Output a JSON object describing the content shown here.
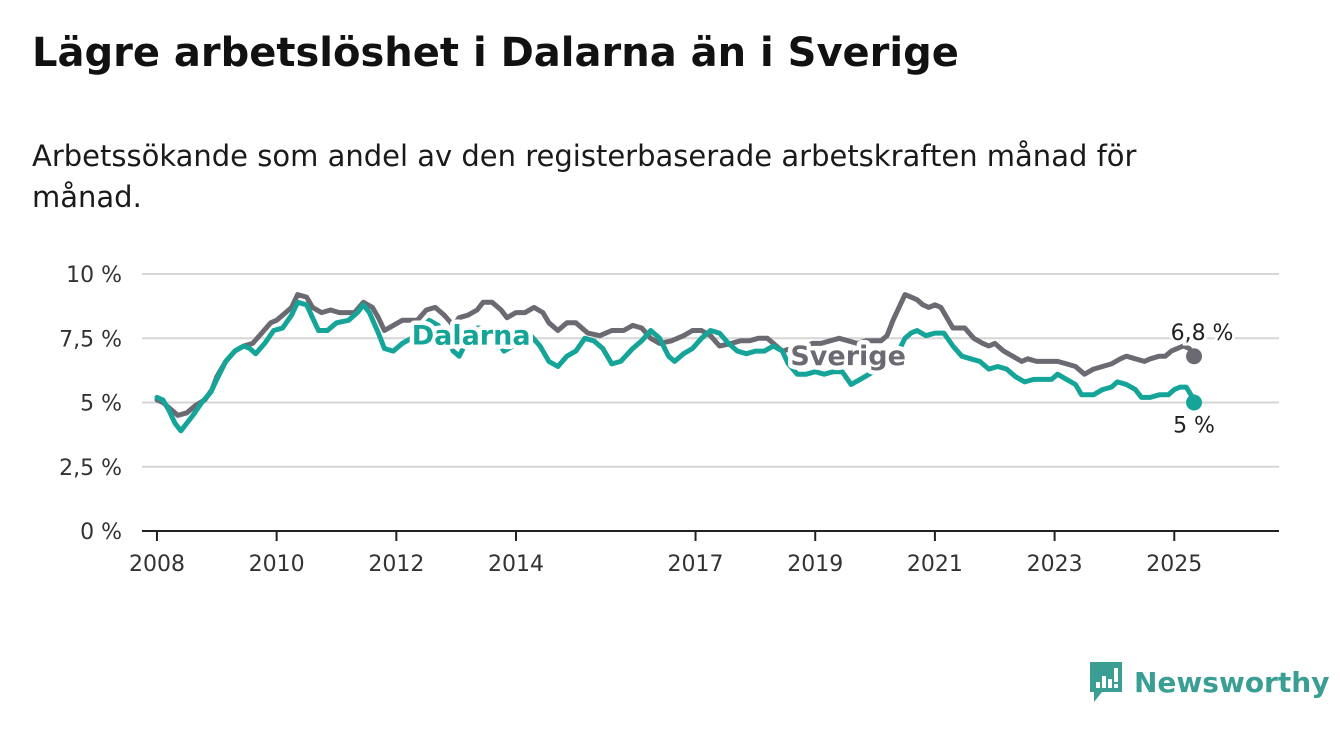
{
  "title": "Lägre arbetslöshet i Dalarna än i Sverige",
  "subtitle": "Arbetssökande som andel av den registerbaserade arbetskraften månad för månad.",
  "brand": {
    "name": "Newsworthy",
    "color": "#3a9e94",
    "icon": "bar-chart-icon"
  },
  "colors": {
    "sverige": "#6b6a72",
    "dalarna": "#14a598",
    "grid": "#d6d6d6",
    "axis": "#222222"
  },
  "chart_data": {
    "type": "line",
    "title": "Lägre arbetslöshet i Dalarna än i Sverige",
    "xlabel": "",
    "ylabel": "",
    "ylim": [
      0,
      10
    ],
    "xlim": [
      2007.75,
      2026.75
    ],
    "yticks": [
      0,
      2.5,
      5,
      7.5,
      10
    ],
    "ytick_labels": [
      "0 %",
      "2,5 %",
      "5 %",
      "7,5 %",
      "10 %"
    ],
    "xticks": [
      2008,
      2010,
      2012,
      2014,
      2017,
      2019,
      2021,
      2023,
      2025
    ],
    "xtick_labels": [
      "2008",
      "2010",
      "2012",
      "2014",
      "2017",
      "2019",
      "2021",
      "2023",
      "2025"
    ],
    "grid": true,
    "legend": "inline labels",
    "end_labels": {
      "sverige": "6,8 %",
      "dalarna": "5 %"
    },
    "series": [
      {
        "name": "Sverige",
        "key": "sverige",
        "points": [
          [
            2008.0,
            5.1
          ],
          [
            2008.1,
            5.0
          ],
          [
            2008.2,
            4.8
          ],
          [
            2008.35,
            4.5
          ],
          [
            2008.5,
            4.6
          ],
          [
            2008.65,
            4.9
          ],
          [
            2008.8,
            5.1
          ],
          [
            2008.92,
            5.5
          ],
          [
            2009.0,
            6.0
          ],
          [
            2009.15,
            6.6
          ],
          [
            2009.3,
            7.0
          ],
          [
            2009.45,
            7.2
          ],
          [
            2009.6,
            7.3
          ],
          [
            2009.75,
            7.7
          ],
          [
            2009.9,
            8.1
          ],
          [
            2010.0,
            8.2
          ],
          [
            2010.15,
            8.5
          ],
          [
            2010.25,
            8.7
          ],
          [
            2010.35,
            9.2
          ],
          [
            2010.5,
            9.1
          ],
          [
            2010.6,
            8.7
          ],
          [
            2010.75,
            8.5
          ],
          [
            2010.9,
            8.6
          ],
          [
            2011.05,
            8.5
          ],
          [
            2011.2,
            8.5
          ],
          [
            2011.3,
            8.5
          ],
          [
            2011.45,
            8.9
          ],
          [
            2011.6,
            8.7
          ],
          [
            2011.7,
            8.3
          ],
          [
            2011.8,
            7.8
          ],
          [
            2011.95,
            8.0
          ],
          [
            2012.1,
            8.2
          ],
          [
            2012.25,
            8.2
          ],
          [
            2012.35,
            8.2
          ],
          [
            2012.5,
            8.6
          ],
          [
            2012.65,
            8.7
          ],
          [
            2012.8,
            8.4
          ],
          [
            2012.95,
            8.0
          ],
          [
            2013.05,
            8.3
          ],
          [
            2013.2,
            8.4
          ],
          [
            2013.35,
            8.6
          ],
          [
            2013.45,
            8.9
          ],
          [
            2013.6,
            8.9
          ],
          [
            2013.75,
            8.6
          ],
          [
            2013.85,
            8.3
          ],
          [
            2014.0,
            8.5
          ],
          [
            2014.15,
            8.5
          ],
          [
            2014.3,
            8.7
          ],
          [
            2014.45,
            8.5
          ],
          [
            2014.55,
            8.1
          ],
          [
            2014.7,
            7.8
          ],
          [
            2014.85,
            8.1
          ],
          [
            2015.0,
            8.1
          ],
          [
            2015.2,
            7.7
          ],
          [
            2015.4,
            7.6
          ],
          [
            2015.6,
            7.8
          ],
          [
            2015.8,
            7.8
          ],
          [
            2015.95,
            8.0
          ],
          [
            2016.1,
            7.9
          ],
          [
            2016.25,
            7.5
          ],
          [
            2016.4,
            7.3
          ],
          [
            2016.6,
            7.4
          ],
          [
            2016.8,
            7.6
          ],
          [
            2016.95,
            7.8
          ],
          [
            2017.1,
            7.8
          ],
          [
            2017.25,
            7.6
          ],
          [
            2017.4,
            7.2
          ],
          [
            2017.6,
            7.3
          ],
          [
            2017.75,
            7.4
          ],
          [
            2017.9,
            7.4
          ],
          [
            2018.05,
            7.5
          ],
          [
            2018.2,
            7.5
          ],
          [
            2018.3,
            7.3
          ],
          [
            2018.45,
            7.0
          ],
          [
            2018.6,
            7.1
          ],
          [
            2018.8,
            7.1
          ],
          [
            2018.95,
            7.3
          ],
          [
            2019.1,
            7.3
          ],
          [
            2019.25,
            7.4
          ],
          [
            2019.4,
            7.5
          ],
          [
            2019.55,
            7.4
          ],
          [
            2019.7,
            7.3
          ],
          [
            2019.85,
            7.4
          ],
          [
            2020.0,
            7.4
          ],
          [
            2020.1,
            7.4
          ],
          [
            2020.2,
            7.6
          ],
          [
            2020.3,
            8.2
          ],
          [
            2020.4,
            8.7
          ],
          [
            2020.5,
            9.2
          ],
          [
            2020.6,
            9.1
          ],
          [
            2020.7,
            9.0
          ],
          [
            2020.8,
            8.8
          ],
          [
            2020.9,
            8.7
          ],
          [
            2021.0,
            8.8
          ],
          [
            2021.1,
            8.7
          ],
          [
            2021.2,
            8.3
          ],
          [
            2021.3,
            7.9
          ],
          [
            2021.5,
            7.9
          ],
          [
            2021.65,
            7.5
          ],
          [
            2021.8,
            7.3
          ],
          [
            2021.9,
            7.2
          ],
          [
            2022.0,
            7.3
          ],
          [
            2022.15,
            7.0
          ],
          [
            2022.3,
            6.8
          ],
          [
            2022.45,
            6.6
          ],
          [
            2022.55,
            6.7
          ],
          [
            2022.7,
            6.6
          ],
          [
            2022.9,
            6.6
          ],
          [
            2023.05,
            6.6
          ],
          [
            2023.2,
            6.5
          ],
          [
            2023.35,
            6.4
          ],
          [
            2023.5,
            6.1
          ],
          [
            2023.65,
            6.3
          ],
          [
            2023.8,
            6.4
          ],
          [
            2023.95,
            6.5
          ],
          [
            2024.1,
            6.7
          ],
          [
            2024.2,
            6.8
          ],
          [
            2024.35,
            6.7
          ],
          [
            2024.5,
            6.6
          ],
          [
            2024.6,
            6.7
          ],
          [
            2024.75,
            6.8
          ],
          [
            2024.85,
            6.8
          ],
          [
            2024.95,
            7.0
          ],
          [
            2025.05,
            7.1
          ],
          [
            2025.15,
            7.2
          ],
          [
            2025.25,
            7.1
          ],
          [
            2025.33,
            6.8
          ]
        ]
      },
      {
        "name": "Dalarna",
        "key": "dalarna",
        "points": [
          [
            2008.0,
            5.2
          ],
          [
            2008.1,
            5.1
          ],
          [
            2008.2,
            4.7
          ],
          [
            2008.3,
            4.2
          ],
          [
            2008.4,
            3.9
          ],
          [
            2008.5,
            4.2
          ],
          [
            2008.6,
            4.5
          ],
          [
            2008.75,
            5.0
          ],
          [
            2008.9,
            5.4
          ],
          [
            2009.0,
            5.9
          ],
          [
            2009.15,
            6.6
          ],
          [
            2009.3,
            7.0
          ],
          [
            2009.45,
            7.2
          ],
          [
            2009.55,
            7.1
          ],
          [
            2009.65,
            6.9
          ],
          [
            2009.8,
            7.3
          ],
          [
            2009.95,
            7.8
          ],
          [
            2010.1,
            7.9
          ],
          [
            2010.25,
            8.4
          ],
          [
            2010.35,
            8.9
          ],
          [
            2010.5,
            8.8
          ],
          [
            2010.6,
            8.3
          ],
          [
            2010.7,
            7.8
          ],
          [
            2010.85,
            7.8
          ],
          [
            2011.0,
            8.1
          ],
          [
            2011.2,
            8.2
          ],
          [
            2011.35,
            8.5
          ],
          [
            2011.45,
            8.8
          ],
          [
            2011.55,
            8.5
          ],
          [
            2011.7,
            7.7
          ],
          [
            2011.8,
            7.1
          ],
          [
            2011.95,
            7.0
          ],
          [
            2012.1,
            7.3
          ],
          [
            2012.25,
            7.5
          ],
          [
            2012.4,
            7.8
          ],
          [
            2012.55,
            8.2
          ],
          [
            2012.7,
            8.0
          ],
          [
            2012.85,
            7.5
          ],
          [
            2012.95,
            7.0
          ],
          [
            2013.05,
            6.8
          ],
          [
            2013.2,
            7.5
          ],
          [
            2013.35,
            7.9
          ],
          [
            2013.5,
            7.9
          ],
          [
            2013.65,
            7.5
          ],
          [
            2013.8,
            7.0
          ],
          [
            2013.95,
            7.2
          ],
          [
            2014.1,
            7.6
          ],
          [
            2014.25,
            7.6
          ],
          [
            2014.4,
            7.2
          ],
          [
            2014.55,
            6.6
          ],
          [
            2014.7,
            6.4
          ],
          [
            2014.85,
            6.8
          ],
          [
            2015.0,
            7.0
          ],
          [
            2015.15,
            7.5
          ],
          [
            2015.3,
            7.4
          ],
          [
            2015.45,
            7.1
          ],
          [
            2015.6,
            6.5
          ],
          [
            2015.75,
            6.6
          ],
          [
            2015.95,
            7.1
          ],
          [
            2016.1,
            7.4
          ],
          [
            2016.25,
            7.8
          ],
          [
            2016.4,
            7.5
          ],
          [
            2016.55,
            6.8
          ],
          [
            2016.65,
            6.6
          ],
          [
            2016.8,
            6.9
          ],
          [
            2016.95,
            7.1
          ],
          [
            2017.1,
            7.5
          ],
          [
            2017.25,
            7.8
          ],
          [
            2017.4,
            7.7
          ],
          [
            2017.55,
            7.3
          ],
          [
            2017.7,
            7.0
          ],
          [
            2017.85,
            6.9
          ],
          [
            2018.0,
            7.0
          ],
          [
            2018.15,
            7.0
          ],
          [
            2018.3,
            7.2
          ],
          [
            2018.45,
            7.0
          ],
          [
            2018.55,
            6.5
          ],
          [
            2018.7,
            6.1
          ],
          [
            2018.85,
            6.1
          ],
          [
            2019.0,
            6.2
          ],
          [
            2019.15,
            6.1
          ],
          [
            2019.3,
            6.2
          ],
          [
            2019.45,
            6.2
          ],
          [
            2019.6,
            5.7
          ],
          [
            2019.75,
            5.9
          ],
          [
            2019.9,
            6.1
          ],
          [
            2020.05,
            6.3
          ],
          [
            2020.2,
            6.5
          ],
          [
            2020.35,
            6.8
          ],
          [
            2020.5,
            7.5
          ],
          [
            2020.6,
            7.7
          ],
          [
            2020.7,
            7.8
          ],
          [
            2020.85,
            7.6
          ],
          [
            2021.0,
            7.7
          ],
          [
            2021.15,
            7.7
          ],
          [
            2021.3,
            7.2
          ],
          [
            2021.45,
            6.8
          ],
          [
            2021.6,
            6.7
          ],
          [
            2021.75,
            6.6
          ],
          [
            2021.9,
            6.3
          ],
          [
            2022.05,
            6.4
          ],
          [
            2022.2,
            6.3
          ],
          [
            2022.35,
            6.0
          ],
          [
            2022.5,
            5.8
          ],
          [
            2022.65,
            5.9
          ],
          [
            2022.8,
            5.9
          ],
          [
            2022.95,
            5.9
          ],
          [
            2023.05,
            6.1
          ],
          [
            2023.2,
            5.9
          ],
          [
            2023.35,
            5.7
          ],
          [
            2023.45,
            5.3
          ],
          [
            2023.65,
            5.3
          ],
          [
            2023.8,
            5.5
          ],
          [
            2023.95,
            5.6
          ],
          [
            2024.05,
            5.8
          ],
          [
            2024.2,
            5.7
          ],
          [
            2024.35,
            5.5
          ],
          [
            2024.45,
            5.2
          ],
          [
            2024.6,
            5.2
          ],
          [
            2024.75,
            5.3
          ],
          [
            2024.9,
            5.3
          ],
          [
            2025.0,
            5.5
          ],
          [
            2025.1,
            5.6
          ],
          [
            2025.2,
            5.6
          ],
          [
            2025.28,
            5.3
          ],
          [
            2025.33,
            5.0
          ]
        ]
      }
    ]
  }
}
